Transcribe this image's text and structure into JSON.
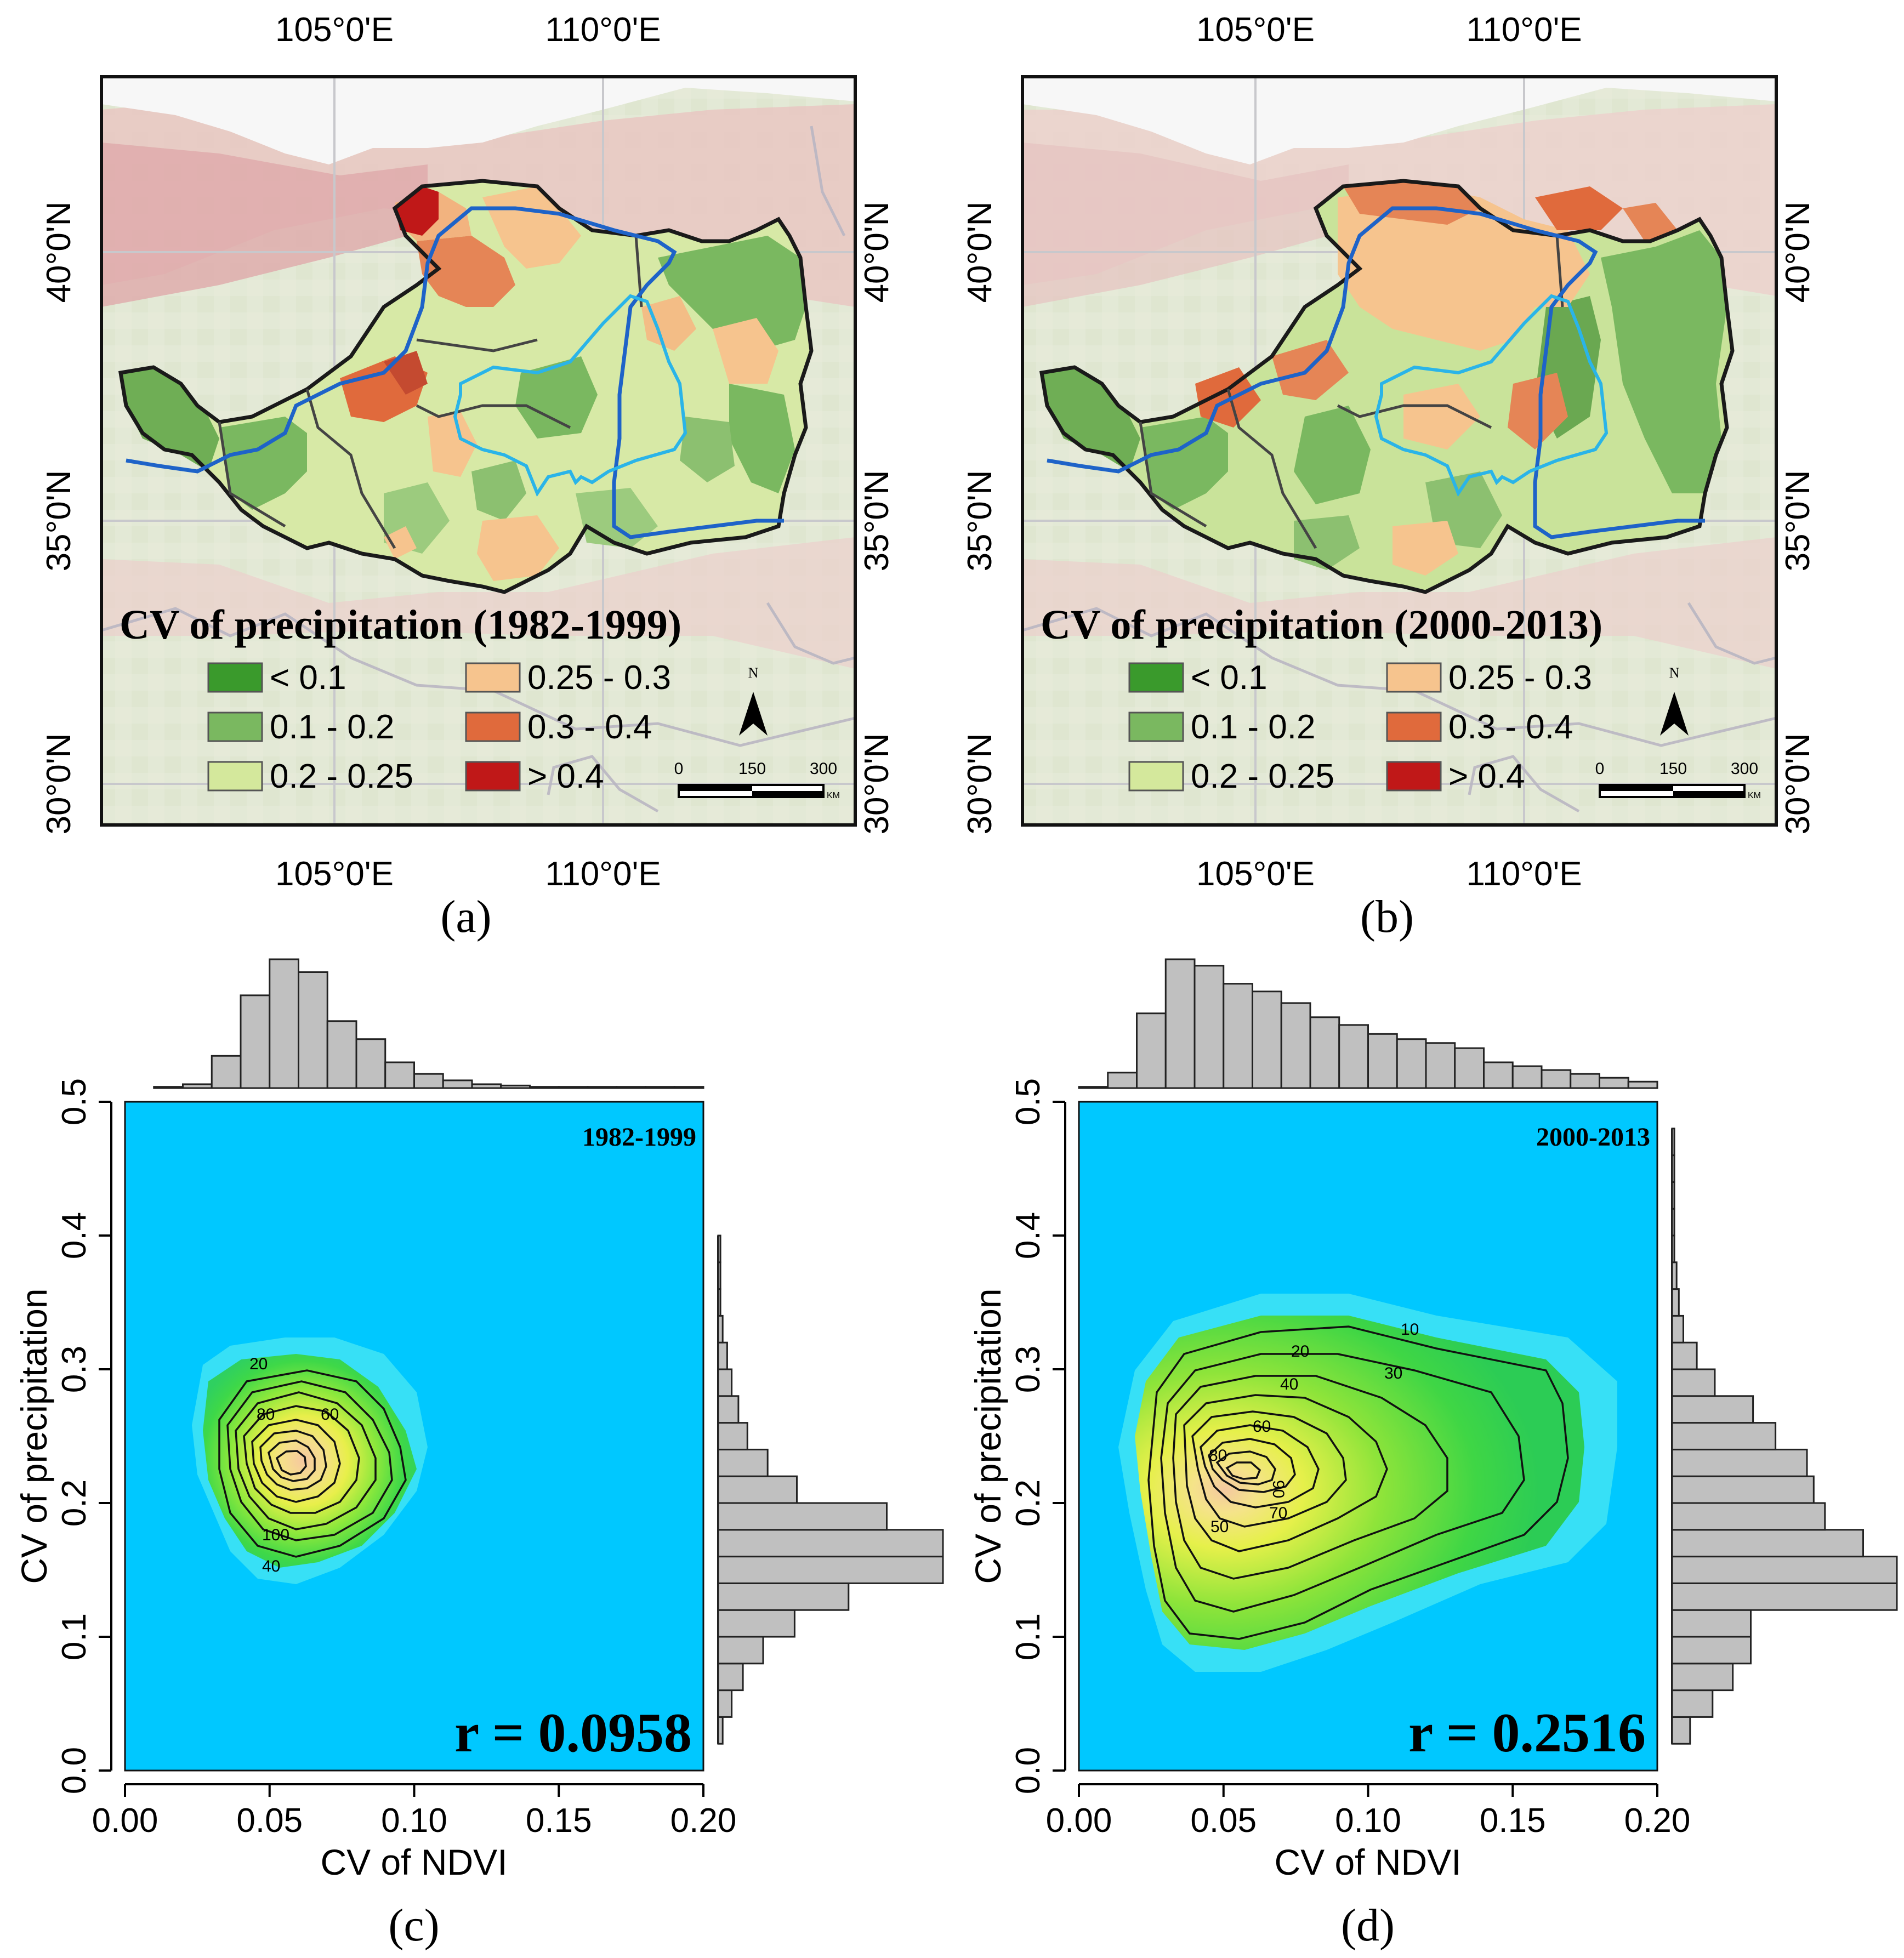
{
  "figure": {
    "panels": [
      {
        "id": "a",
        "caption": "(a)",
        "map_title": "CV of precipitation (1982-1999)",
        "lon_top": [
          "105°0'E",
          "110°0'E"
        ],
        "lon_bottom": [
          "105°0'E",
          "110°0'E"
        ],
        "lat_left": [
          "40°0'N",
          "35°0'N",
          "30°0'N"
        ],
        "lat_right": [
          "40°0'N",
          "35°0'N",
          "30°0'N"
        ],
        "legend": [
          {
            "label": "< 0.1",
            "color": "#3a9a2c"
          },
          {
            "label": "0.1 - 0.2",
            "color": "#7ab860"
          },
          {
            "label": "0.2 - 0.25",
            "color": "#d4e89c"
          },
          {
            "label": "0.25 - 0.3",
            "color": "#f6c48e"
          },
          {
            "label": "0.3 - 0.4",
            "color": "#e06a3c"
          },
          {
            "label": "> 0.4",
            "color": "#c01818"
          }
        ],
        "north_label": "N",
        "scale_ticks": [
          "0",
          "150",
          "300"
        ],
        "scale_unit": "KM"
      },
      {
        "id": "b",
        "caption": "(b)",
        "map_title": "CV of precipitation (2000-2013)",
        "lon_top": [
          "105°0'E",
          "110°0'E"
        ],
        "lon_bottom": [
          "105°0'E",
          "110°0'E"
        ],
        "lat_left": [
          "40°0'N",
          "35°0'N",
          "30°0'N"
        ],
        "lat_right": [
          "40°0'N",
          "35°0'N",
          "30°0'N"
        ],
        "legend": [
          {
            "label": "< 0.1",
            "color": "#3a9a2c"
          },
          {
            "label": "0.1 - 0.2",
            "color": "#7ab860"
          },
          {
            "label": "0.2 - 0.25",
            "color": "#d4e89c"
          },
          {
            "label": "0.25 - 0.3",
            "color": "#f6c48e"
          },
          {
            "label": "0.3 - 0.4",
            "color": "#e06a3c"
          },
          {
            "label": "> 0.4",
            "color": "#c01818"
          }
        ],
        "north_label": "N",
        "scale_ticks": [
          "0",
          "150",
          "300"
        ],
        "scale_unit": "KM"
      }
    ]
  },
  "chart_data": [
    {
      "panel": "c",
      "caption": "(c)",
      "type": "heatmap",
      "title": "1982-1999",
      "xlabel": "CV of NDVI",
      "ylabel": "CV of precipitation",
      "xlim": [
        0,
        0.2
      ],
      "ylim": [
        0,
        0.5
      ],
      "xticks": [
        "0.00",
        "0.05",
        "0.10",
        "0.15",
        "0.20"
      ],
      "yticks": [
        "0.0",
        "0.1",
        "0.2",
        "0.3",
        "0.4",
        "0.5"
      ],
      "annotation": "r = 0.0958",
      "density_peak": {
        "x": 0.05,
        "y": 0.21
      },
      "contour_labels": [
        "20",
        "40",
        "60",
        "80",
        "100"
      ],
      "top_histogram": {
        "bin_edges": [
          0,
          0.01,
          0.02,
          0.03,
          0.04,
          0.05,
          0.06,
          0.07,
          0.08,
          0.09,
          0.1,
          0.11,
          0.12,
          0.13,
          0.14,
          0.15,
          0.16,
          0.17,
          0.18,
          0.19,
          0.2
        ],
        "counts": [
          0,
          1,
          3,
          25,
          72,
          100,
          90,
          52,
          38,
          20,
          11,
          6,
          3,
          2,
          1,
          1,
          1,
          1,
          1,
          1
        ]
      },
      "right_histogram": {
        "bin_edges": [
          0.02,
          0.04,
          0.06,
          0.08,
          0.1,
          0.12,
          0.14,
          0.16,
          0.18,
          0.2,
          0.22,
          0.24,
          0.26,
          0.28,
          0.3,
          0.32,
          0.34,
          0.36,
          0.38,
          0.4
        ],
        "counts": [
          2,
          6,
          11,
          20,
          34,
          58,
          100,
          100,
          75,
          35,
          22,
          13,
          9,
          6,
          4,
          2,
          1,
          1,
          1
        ]
      }
    },
    {
      "panel": "d",
      "caption": "(d)",
      "type": "heatmap",
      "title": "2000-2013",
      "xlabel": "CV of NDVI",
      "ylabel": "CV of precipitation",
      "xlim": [
        0,
        0.2
      ],
      "ylim": [
        0,
        0.5
      ],
      "xticks": [
        "0.00",
        "0.05",
        "0.10",
        "0.15",
        "0.20"
      ],
      "yticks": [
        "0.0",
        "0.1",
        "0.2",
        "0.3",
        "0.4",
        "0.5"
      ],
      "annotation": "r = 0.2516",
      "density_peak": {
        "x": 0.05,
        "y": 0.21
      },
      "contour_labels": [
        "10",
        "20",
        "30",
        "40",
        "50",
        "60",
        "70",
        "80",
        "90"
      ],
      "top_histogram": {
        "bin_edges": [
          0,
          0.01,
          0.02,
          0.03,
          0.04,
          0.05,
          0.06,
          0.07,
          0.08,
          0.09,
          0.1,
          0.11,
          0.12,
          0.13,
          0.14,
          0.15,
          0.16,
          0.17,
          0.18,
          0.19,
          0.2
        ],
        "counts": [
          1,
          12,
          58,
          100,
          95,
          81,
          75,
          66,
          55,
          49,
          42,
          38,
          35,
          31,
          20,
          17,
          14,
          11,
          8,
          5
        ]
      },
      "right_histogram": {
        "bin_edges": [
          0.02,
          0.04,
          0.06,
          0.08,
          0.1,
          0.12,
          0.14,
          0.16,
          0.18,
          0.2,
          0.22,
          0.24,
          0.26,
          0.28,
          0.3,
          0.32,
          0.34,
          0.36,
          0.38,
          0.4,
          0.42,
          0.44,
          0.46,
          0.48
        ],
        "counts": [
          8,
          18,
          27,
          35,
          35,
          100,
          100,
          85,
          68,
          63,
          60,
          46,
          36,
          19,
          11,
          5,
          3,
          2,
          1,
          1,
          1,
          1,
          1
        ]
      }
    }
  ]
}
